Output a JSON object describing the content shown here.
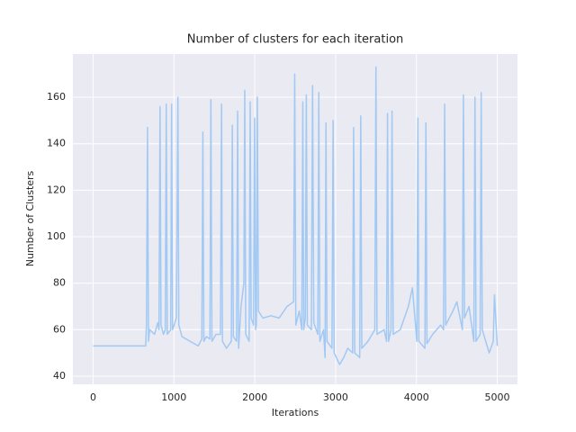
{
  "chart_data": {
    "type": "line",
    "title": "Number of clusters for each iteration",
    "xlabel": "Iterations",
    "ylabel": "Number of Clusters",
    "x": [
      0,
      650,
      660,
      673,
      685,
      700,
      760,
      800,
      815,
      828,
      840,
      870,
      893,
      905,
      917,
      960,
      971,
      983,
      1030,
      1049,
      1060,
      1100,
      1200,
      1300,
      1345,
      1358,
      1370,
      1400,
      1445,
      1457,
      1470,
      1520,
      1575,
      1589,
      1600,
      1650,
      1710,
      1722,
      1735,
      1775,
      1788,
      1800,
      1830,
      1865,
      1876,
      1888,
      1930,
      1943,
      1955,
      1985,
      1998,
      2010,
      2020,
      2031,
      2045,
      2100,
      2200,
      2300,
      2400,
      2480,
      2494,
      2508,
      2550,
      2582,
      2594,
      2606,
      2625,
      2638,
      2650,
      2700,
      2715,
      2730,
      2780,
      2792,
      2805,
      2850,
      2870,
      2881,
      2893,
      2955,
      2969,
      2982,
      3050,
      3100,
      3150,
      3210,
      3223,
      3236,
      3298,
      3311,
      3324,
      3400,
      3485,
      3499,
      3512,
      3600,
      3630,
      3642,
      3655,
      3685,
      3698,
      3712,
      3800,
      3850,
      3900,
      3950,
      4005,
      4018,
      4030,
      4105,
      4117,
      4130,
      4200,
      4300,
      4335,
      4349,
      4362,
      4450,
      4500,
      4568,
      4581,
      4594,
      4650,
      4710,
      4724,
      4737,
      4788,
      4801,
      4814,
      4900,
      4950,
      4965,
      5000
    ],
    "series": [
      {
        "name": "Number of Clusters",
        "color": "#a1c9f4",
        "values": [
          53,
          53,
          62,
          147,
          55,
          60,
          58,
          63,
          60,
          156,
          62,
          58,
          60,
          157,
          58,
          60,
          157,
          60,
          65,
          160,
          62,
          57,
          55,
          53,
          56,
          145,
          55,
          57,
          56,
          159,
          55,
          58,
          58,
          157,
          55,
          52,
          55,
          148,
          57,
          55,
          154,
          52,
          70,
          80,
          163,
          58,
          55,
          158,
          65,
          62,
          151,
          60,
          62,
          160,
          68,
          65,
          66,
          65,
          70,
          72,
          170,
          62,
          68,
          60,
          158,
          60,
          65,
          161,
          62,
          60,
          165,
          63,
          58,
          162,
          55,
          60,
          48,
          149,
          55,
          52,
          150,
          50,
          45,
          48,
          52,
          50,
          147,
          50,
          48,
          152,
          52,
          55,
          60,
          173,
          58,
          60,
          55,
          153,
          55,
          60,
          154,
          58,
          60,
          65,
          70,
          78,
          55,
          151,
          55,
          52,
          149,
          54,
          58,
          62,
          60,
          157,
          62,
          68,
          72,
          60,
          161,
          65,
          70,
          55,
          160,
          55,
          58,
          162,
          60,
          50,
          55,
          75,
          53
        ]
      }
    ],
    "xlim": [
      -250,
      5250
    ],
    "ylim": [
      36.5,
      178.6
    ],
    "xticks": [
      0,
      1000,
      2000,
      3000,
      4000,
      5000
    ],
    "yticks": [
      40,
      60,
      80,
      100,
      120,
      140,
      160
    ],
    "grid": true,
    "background": "#eaeaf2"
  }
}
